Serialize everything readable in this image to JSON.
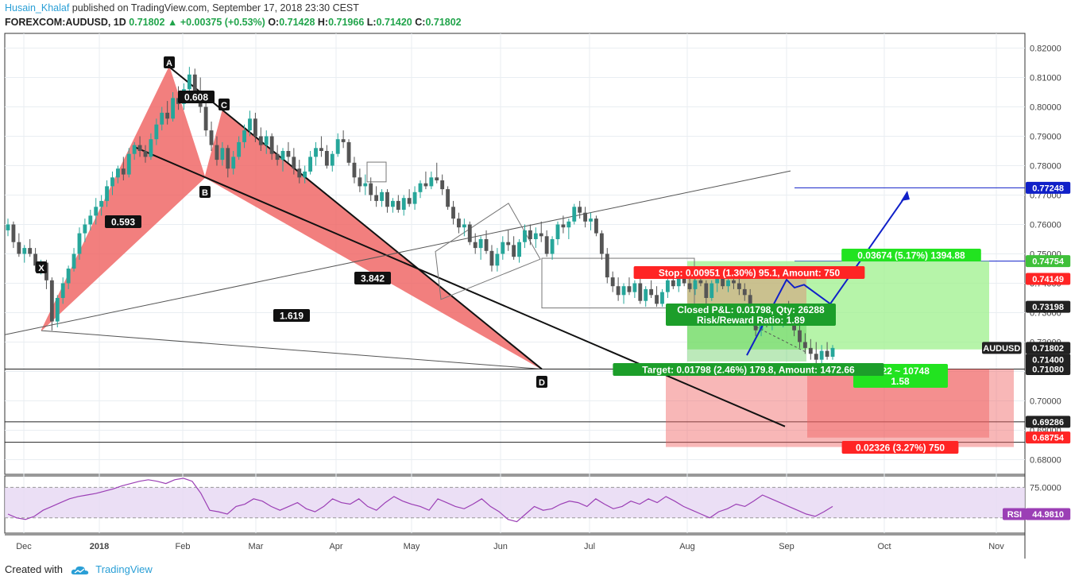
{
  "header": {
    "author": "Husain_Khalaf",
    "published": "published on TradingView.com, September 17, 2018 23:30 CEST",
    "symbol": "FOREXCOM:AUDUSD, 1D",
    "last": "0.71802",
    "change": "+0.00375 (+0.53%)",
    "o_label": "O:",
    "o": "0.71428",
    "h_label": "H:",
    "h": "0.71966",
    "l_label": "L:",
    "l": "0.71420",
    "c_label": "C:",
    "c": "0.71802"
  },
  "footer": {
    "created_with": "Created with",
    "brand": "TradingView"
  },
  "colors": {
    "grid": "#e9eef2",
    "up": "#26a69a",
    "down": "#555",
    "pattern": "#f0605f",
    "target_green": "#3fc03a",
    "stop_red": "#ff2424",
    "accent_blue": "#1020c8",
    "rsi": "#9b3fb5"
  },
  "chart_data": {
    "type": "candlestick",
    "symbol": "AUDUSD",
    "timeframe": "1D",
    "ylim": [
      0.675,
      0.825
    ],
    "yticks": [
      "0.82000",
      "0.81000",
      "0.80000",
      "0.79000",
      "0.78000",
      "0.77000",
      "0.76000",
      "0.75000",
      "0.74000",
      "0.73000",
      "0.72000",
      "0.71000",
      "0.70000",
      "0.69000",
      "0.68000"
    ],
    "xticks": [
      "Dec",
      "2018",
      "Feb",
      "Mar",
      "Apr",
      "May",
      "Jun",
      "Jul",
      "Aug",
      "Sep",
      "Oct",
      "Nov"
    ],
    "price_labels": [
      {
        "text": "0.77248",
        "value": 0.77248,
        "kind": "blue"
      },
      {
        "text": "0.74754",
        "value": 0.74754,
        "kind": "green"
      },
      {
        "text": "0.74149",
        "value": 0.74149,
        "kind": "red"
      },
      {
        "text": "0.73198",
        "value": 0.73198,
        "kind": "dark"
      },
      {
        "text": "AUDUSD",
        "value": 0.71802,
        "kind": "dark"
      },
      {
        "text": "0.71802",
        "value": 0.71802,
        "kind": "dark"
      },
      {
        "text": "0.71400",
        "value": 0.714,
        "kind": "dark"
      },
      {
        "text": "0.71080",
        "value": 0.7108,
        "kind": "dark"
      },
      {
        "text": "0.69286",
        "value": 0.69286,
        "kind": "dark"
      },
      {
        "text": "0.68754",
        "value": 0.68754,
        "kind": "red"
      }
    ],
    "pattern_points": {
      "X": 0.7239,
      "A": 0.8136,
      "B": 0.776,
      "C": 0.7987,
      "D": 0.7108
    },
    "pattern_labels": [
      "X",
      "A",
      "B",
      "C",
      "D"
    ],
    "ratios": [
      "0.608",
      "0.593",
      "3.842",
      "1.619"
    ],
    "long_position": {
      "stop": "Stop: 0.00951 (1.30%) 95.1, Amount: 750",
      "closed": "Closed P&L: 0.01798, Qty: 26288",
      "rr": "Risk/Reward Ratio: 1.89",
      "target": "Target: 0.01798 (2.46%) 179.8, Amount: 1472.66"
    },
    "second_position": {
      "profit": "0.03674 (5.17%) 1394.88",
      "mid": "0722 ~ 10748",
      "ratio": "1.58",
      "loss": "0.02326 (3.27%) 750"
    },
    "rsi": {
      "label": "RSI",
      "value": "44.9810",
      "scale": "75.0000",
      "ylim": [
        10,
        85
      ],
      "upper": 70,
      "lower": 30,
      "values": [
        35,
        30,
        28,
        32,
        40,
        45,
        50,
        55,
        58,
        60,
        62,
        65,
        68,
        72,
        75,
        78,
        80,
        78,
        75,
        80,
        82,
        78,
        62,
        40,
        38,
        35,
        45,
        48,
        55,
        52,
        45,
        40,
        45,
        50,
        42,
        38,
        45,
        55,
        50,
        48,
        55,
        45,
        40,
        50,
        58,
        52,
        48,
        45,
        40,
        55,
        50,
        45,
        42,
        48,
        55,
        45,
        38,
        28,
        25,
        35,
        45,
        40,
        42,
        48,
        52,
        50,
        45,
        55,
        48,
        42,
        45,
        52,
        48,
        55,
        50,
        58,
        52,
        45,
        40,
        35,
        30,
        38,
        42,
        48,
        45,
        52,
        60,
        55,
        50,
        45,
        40,
        35,
        32,
        38,
        45
      ]
    },
    "candles": [
      [
        0.758,
        0.762,
        0.756,
        0.76
      ],
      [
        0.76,
        0.761,
        0.752,
        0.754
      ],
      [
        0.754,
        0.757,
        0.749,
        0.75
      ],
      [
        0.75,
        0.753,
        0.747,
        0.752
      ],
      [
        0.752,
        0.755,
        0.749,
        0.75
      ],
      [
        0.75,
        0.752,
        0.744,
        0.746
      ],
      [
        0.746,
        0.748,
        0.743,
        0.747
      ],
      [
        0.747,
        0.748,
        0.738,
        0.741
      ],
      [
        0.741,
        0.742,
        0.7239,
        0.727
      ],
      [
        0.727,
        0.736,
        0.725,
        0.735
      ],
      [
        0.735,
        0.742,
        0.733,
        0.74
      ],
      [
        0.74,
        0.746,
        0.738,
        0.745
      ],
      [
        0.745,
        0.752,
        0.744,
        0.75
      ],
      [
        0.75,
        0.759,
        0.748,
        0.757
      ],
      [
        0.757,
        0.762,
        0.754,
        0.76
      ],
      [
        0.76,
        0.765,
        0.758,
        0.763
      ],
      [
        0.763,
        0.769,
        0.76,
        0.766
      ],
      [
        0.766,
        0.77,
        0.763,
        0.768
      ],
      [
        0.768,
        0.775,
        0.766,
        0.773
      ],
      [
        0.773,
        0.778,
        0.77,
        0.776
      ],
      [
        0.776,
        0.78,
        0.774,
        0.779
      ],
      [
        0.779,
        0.783,
        0.775,
        0.777
      ],
      [
        0.777,
        0.786,
        0.776,
        0.784
      ],
      [
        0.784,
        0.788,
        0.782,
        0.787
      ],
      [
        0.787,
        0.79,
        0.783,
        0.785
      ],
      [
        0.785,
        0.787,
        0.781,
        0.783
      ],
      [
        0.783,
        0.791,
        0.782,
        0.789
      ],
      [
        0.789,
        0.796,
        0.787,
        0.794
      ],
      [
        0.794,
        0.8,
        0.792,
        0.798
      ],
      [
        0.798,
        0.802,
        0.794,
        0.796
      ],
      [
        0.796,
        0.805,
        0.795,
        0.803
      ],
      [
        0.803,
        0.807,
        0.799,
        0.801
      ],
      [
        0.801,
        0.808,
        0.799,
        0.806
      ],
      [
        0.806,
        0.8136,
        0.804,
        0.811
      ],
      [
        0.811,
        0.813,
        0.803,
        0.805
      ],
      [
        0.805,
        0.81,
        0.798,
        0.8
      ],
      [
        0.8,
        0.802,
        0.79,
        0.792
      ],
      [
        0.792,
        0.795,
        0.785,
        0.787
      ],
      [
        0.787,
        0.79,
        0.78,
        0.782
      ],
      [
        0.782,
        0.788,
        0.78,
        0.786
      ],
      [
        0.786,
        0.787,
        0.776,
        0.779
      ],
      [
        0.779,
        0.785,
        0.777,
        0.783
      ],
      [
        0.783,
        0.79,
        0.782,
        0.788
      ],
      [
        0.788,
        0.794,
        0.786,
        0.792
      ],
      [
        0.792,
        0.7987,
        0.79,
        0.796
      ],
      [
        0.796,
        0.798,
        0.788,
        0.79
      ],
      [
        0.79,
        0.793,
        0.785,
        0.787
      ],
      [
        0.787,
        0.792,
        0.784,
        0.79
      ],
      [
        0.79,
        0.791,
        0.782,
        0.784
      ],
      [
        0.784,
        0.787,
        0.78,
        0.782
      ],
      [
        0.782,
        0.786,
        0.778,
        0.785
      ],
      [
        0.785,
        0.788,
        0.781,
        0.783
      ],
      [
        0.783,
        0.786,
        0.777,
        0.779
      ],
      [
        0.779,
        0.782,
        0.774,
        0.776
      ],
      [
        0.776,
        0.78,
        0.774,
        0.778
      ],
      [
        0.778,
        0.785,
        0.777,
        0.783
      ],
      [
        0.783,
        0.788,
        0.78,
        0.786
      ],
      [
        0.786,
        0.79,
        0.783,
        0.785
      ],
      [
        0.785,
        0.787,
        0.779,
        0.78
      ],
      [
        0.78,
        0.785,
        0.778,
        0.784
      ],
      [
        0.784,
        0.791,
        0.783,
        0.789
      ],
      [
        0.789,
        0.792,
        0.786,
        0.788
      ],
      [
        0.788,
        0.789,
        0.78,
        0.781
      ],
      [
        0.781,
        0.783,
        0.774,
        0.776
      ],
      [
        0.776,
        0.779,
        0.771,
        0.773
      ],
      [
        0.773,
        0.777,
        0.77,
        0.774
      ],
      [
        0.774,
        0.776,
        0.768,
        0.77
      ],
      [
        0.77,
        0.773,
        0.766,
        0.768
      ],
      [
        0.768,
        0.772,
        0.766,
        0.771
      ],
      [
        0.771,
        0.772,
        0.764,
        0.766
      ],
      [
        0.766,
        0.769,
        0.764,
        0.768
      ],
      [
        0.768,
        0.77,
        0.764,
        0.765
      ],
      [
        0.765,
        0.77,
        0.763,
        0.769
      ],
      [
        0.769,
        0.772,
        0.766,
        0.767
      ],
      [
        0.767,
        0.773,
        0.765,
        0.771
      ],
      [
        0.771,
        0.775,
        0.769,
        0.774
      ],
      [
        0.774,
        0.778,
        0.772,
        0.773
      ],
      [
        0.773,
        0.778,
        0.772,
        0.776
      ],
      [
        0.776,
        0.781,
        0.774,
        0.775
      ],
      [
        0.775,
        0.777,
        0.77,
        0.772
      ],
      [
        0.772,
        0.773,
        0.765,
        0.766
      ],
      [
        0.766,
        0.768,
        0.76,
        0.762
      ],
      [
        0.762,
        0.764,
        0.757,
        0.759
      ],
      [
        0.759,
        0.762,
        0.756,
        0.76
      ],
      [
        0.76,
        0.761,
        0.753,
        0.754
      ],
      [
        0.754,
        0.757,
        0.75,
        0.752
      ],
      [
        0.752,
        0.756,
        0.748,
        0.755
      ],
      [
        0.755,
        0.758,
        0.75,
        0.751
      ],
      [
        0.751,
        0.753,
        0.744,
        0.746
      ],
      [
        0.746,
        0.752,
        0.744,
        0.75
      ],
      [
        0.75,
        0.756,
        0.748,
        0.754
      ],
      [
        0.754,
        0.758,
        0.751,
        0.753
      ],
      [
        0.753,
        0.756,
        0.748,
        0.749
      ],
      [
        0.749,
        0.755,
        0.747,
        0.754
      ],
      [
        0.754,
        0.76,
        0.752,
        0.758
      ],
      [
        0.758,
        0.76,
        0.753,
        0.755
      ],
      [
        0.755,
        0.759,
        0.752,
        0.757
      ],
      [
        0.757,
        0.761,
        0.754,
        0.756
      ],
      [
        0.756,
        0.758,
        0.749,
        0.75
      ],
      [
        0.75,
        0.756,
        0.748,
        0.755
      ],
      [
        0.755,
        0.761,
        0.753,
        0.76
      ],
      [
        0.76,
        0.763,
        0.757,
        0.759
      ],
      [
        0.759,
        0.762,
        0.755,
        0.761
      ],
      [
        0.761,
        0.767,
        0.76,
        0.766
      ],
      [
        0.766,
        0.768,
        0.762,
        0.764
      ],
      [
        0.764,
        0.766,
        0.759,
        0.761
      ],
      [
        0.761,
        0.764,
        0.758,
        0.762
      ],
      [
        0.762,
        0.763,
        0.756,
        0.757
      ],
      [
        0.757,
        0.758,
        0.748,
        0.75
      ],
      [
        0.75,
        0.752,
        0.74,
        0.742
      ],
      [
        0.742,
        0.744,
        0.737,
        0.739
      ],
      [
        0.739,
        0.742,
        0.734,
        0.736
      ],
      [
        0.736,
        0.74,
        0.733,
        0.739
      ],
      [
        0.739,
        0.742,
        0.736,
        0.737
      ],
      [
        0.737,
        0.741,
        0.735,
        0.74
      ],
      [
        0.74,
        0.742,
        0.733,
        0.734
      ],
      [
        0.734,
        0.739,
        0.732,
        0.738
      ],
      [
        0.738,
        0.741,
        0.735,
        0.736
      ],
      [
        0.736,
        0.739,
        0.732,
        0.733
      ],
      [
        0.733,
        0.738,
        0.732,
        0.737
      ],
      [
        0.737,
        0.742,
        0.735,
        0.741
      ],
      [
        0.741,
        0.744,
        0.738,
        0.739
      ],
      [
        0.739,
        0.743,
        0.737,
        0.742
      ],
      [
        0.742,
        0.745,
        0.739,
        0.74
      ],
      [
        0.74,
        0.744,
        0.737,
        0.738
      ],
      [
        0.738,
        0.742,
        0.736,
        0.741
      ],
      [
        0.741,
        0.744,
        0.739,
        0.74
      ],
      [
        0.74,
        0.741,
        0.733,
        0.735
      ],
      [
        0.735,
        0.741,
        0.734,
        0.74
      ],
      [
        0.74,
        0.743,
        0.737,
        0.742
      ],
      [
        0.742,
        0.745,
        0.738,
        0.739
      ],
      [
        0.739,
        0.743,
        0.737,
        0.741
      ],
      [
        0.741,
        0.744,
        0.738,
        0.74
      ],
      [
        0.74,
        0.743,
        0.736,
        0.738
      ],
      [
        0.738,
        0.74,
        0.734,
        0.736
      ],
      [
        0.736,
        0.738,
        0.728,
        0.73
      ],
      [
        0.73,
        0.732,
        0.722,
        0.724
      ],
      [
        0.724,
        0.73,
        0.722,
        0.728
      ],
      [
        0.728,
        0.731,
        0.725,
        0.726
      ],
      [
        0.726,
        0.731,
        0.724,
        0.73
      ],
      [
        0.73,
        0.733,
        0.726,
        0.728
      ],
      [
        0.728,
        0.732,
        0.725,
        0.73
      ],
      [
        0.73,
        0.734,
        0.727,
        0.729
      ],
      [
        0.729,
        0.731,
        0.722,
        0.724
      ],
      [
        0.724,
        0.727,
        0.718,
        0.72
      ],
      [
        0.72,
        0.723,
        0.716,
        0.718
      ],
      [
        0.718,
        0.721,
        0.714,
        0.716
      ],
      [
        0.716,
        0.72,
        0.7108,
        0.714
      ],
      [
        0.714,
        0.719,
        0.712,
        0.717
      ],
      [
        0.717,
        0.72,
        0.714,
        0.715
      ],
      [
        0.715,
        0.719,
        0.714,
        0.718
      ]
    ]
  }
}
